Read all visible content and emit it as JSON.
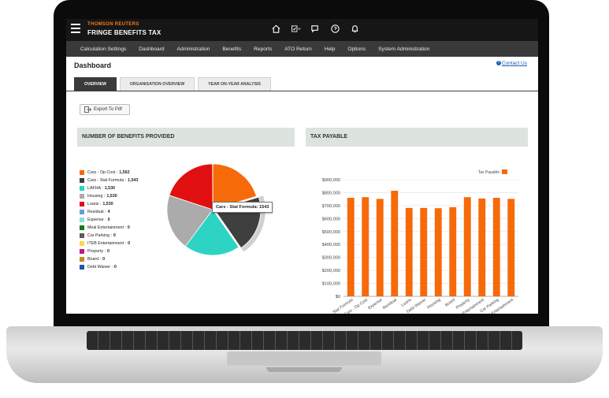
{
  "header": {
    "brand_top": "THOMSON REUTERS",
    "brand_main": "FRINGE BENEFITS TAX",
    "icons": [
      "home-icon",
      "checklist-icon",
      "chat-icon",
      "help-icon",
      "bell-icon"
    ]
  },
  "nav": {
    "items": [
      "Calculation Settings",
      "Dashboard",
      "Administration",
      "Benefits",
      "Reports",
      "ATO Return",
      "Help",
      "Options",
      "System Administration"
    ]
  },
  "page": {
    "title": "Dashboard",
    "contact_link": "Contact Us"
  },
  "tabs": [
    "OVERVIEW",
    "ORGANISATION OVERVIEW",
    "YEAR ON-YEAR ANALYSIS"
  ],
  "export_label": "Export To Pdf",
  "panels": {
    "left_title": "NUMBER OF BENEFITS PROVIDED",
    "right_title": "TAX PAYABLE"
  },
  "tooltip": "Cars - Stat Formula: 1543",
  "colors": {
    "accent": "#f7791c",
    "topbar": "#161616",
    "navbar": "#3a3a3a"
  },
  "chart_data": [
    {
      "type": "pie",
      "legend": [
        {
          "label": "Cars - Op Cost",
          "value": "1,562",
          "color": "#f66a0a"
        },
        {
          "label": "Cars - Stat Formula",
          "value": "1,543",
          "color": "#3f3f3f"
        },
        {
          "label": "LAFHA",
          "value": "1,530",
          "color": "#2dd4c4"
        },
        {
          "label": "Housing",
          "value": "1,530",
          "color": "#ababab"
        },
        {
          "label": "Loans",
          "value": "1,530",
          "color": "#e01010"
        },
        {
          "label": "Residual",
          "value": "4",
          "color": "#6a9be0"
        },
        {
          "label": "Expense",
          "value": "0",
          "color": "#86e0d8"
        },
        {
          "label": "Meal Entertainment",
          "value": "0",
          "color": "#0e7a12"
        },
        {
          "label": "Car Parking",
          "value": "0",
          "color": "#5a5a5a"
        },
        {
          "label": "ITEB Entertainment",
          "value": "0",
          "color": "#f2e040"
        },
        {
          "label": "Property",
          "value": "0",
          "color": "#c4167e"
        },
        {
          "label": "Board",
          "value": "0",
          "color": "#c88a1a"
        },
        {
          "label": "Debt Waiver",
          "value": "0",
          "color": "#1a5aa0"
        }
      ],
      "values": [
        1562,
        1543,
        1530,
        1530,
        1530,
        4,
        0,
        0,
        0,
        0,
        0,
        0,
        0
      ]
    },
    {
      "type": "bar",
      "legend": "Tax Payable",
      "legend_placement": "top-right",
      "categories": [
        "Cars - Stat Formula",
        "Cars - Op Cost",
        "Expense",
        "Residual",
        "Loans",
        "Debt Waiver",
        "Housing",
        "Board",
        "Property",
        "ITEB Entertainment",
        "Car Parking",
        "Meal Entertainment"
      ],
      "values": [
        760000,
        765000,
        752000,
        815000,
        682000,
        682000,
        680000,
        688000,
        765000,
        755000,
        760000,
        752000
      ],
      "yticks": [
        "$0",
        "$100,000",
        "$200,000",
        "$300,000",
        "$400,000",
        "$500,000",
        "$600,000",
        "$700,000",
        "$800,000",
        "$900,000"
      ],
      "ylim": [
        0,
        900000
      ],
      "color": "#f66a0a"
    }
  ]
}
